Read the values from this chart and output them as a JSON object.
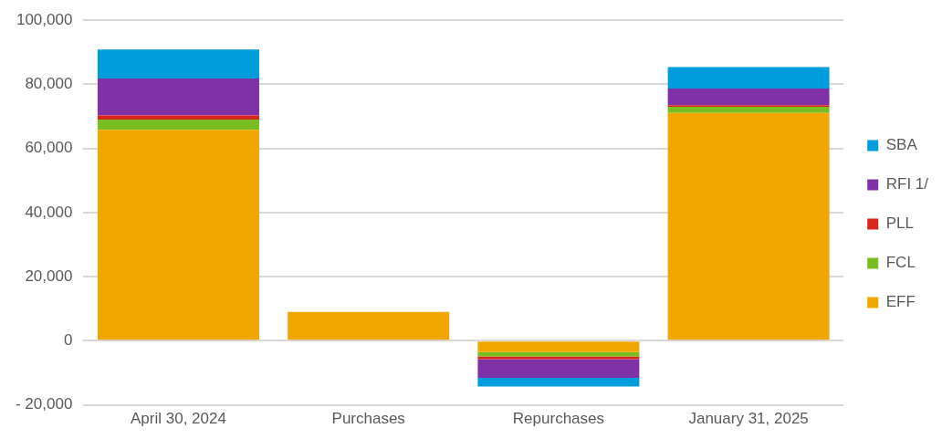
{
  "chart_data": {
    "type": "bar",
    "stacked": true,
    "categories": [
      "April 30, 2024",
      "Purchases",
      "Repurchases",
      "January 31, 2025"
    ],
    "series": [
      {
        "name": "EFF",
        "color": "#f0a800",
        "values": [
          65800,
          9000,
          -3500,
          71100
        ]
      },
      {
        "name": "FCL",
        "color": "#78be20",
        "values": [
          3200,
          null,
          -1400,
          1900
        ]
      },
      {
        "name": "PLL",
        "color": "#d9261c",
        "values": [
          1300,
          null,
          -800,
          500
        ]
      },
      {
        "name": "RFI 1/",
        "color": "#7f31a6",
        "values": [
          11500,
          null,
          -5900,
          5200
        ]
      },
      {
        "name": "SBA",
        "color": "#009ddc",
        "values": [
          9100,
          null,
          -2700,
          6700
        ]
      }
    ],
    "ylim": [
      -20000,
      100000
    ],
    "yticks": [
      {
        "value": -20000,
        "label": "- 20,000"
      },
      {
        "value": 0,
        "label": "0"
      },
      {
        "value": 20000,
        "label": "20,000"
      },
      {
        "value": 40000,
        "label": "40,000"
      },
      {
        "value": 60000,
        "label": "60,000"
      },
      {
        "value": 80000,
        "label": "80,000"
      },
      {
        "value": 100000,
        "label": "100,000"
      }
    ],
    "grid": "y",
    "legend": "right"
  }
}
